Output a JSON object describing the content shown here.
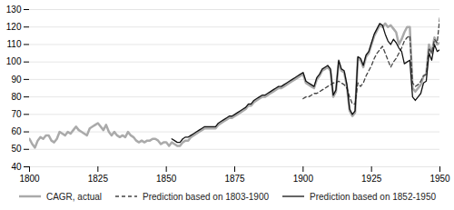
{
  "chart_data": {
    "type": "line",
    "x": [
      1800,
      1801,
      1802,
      1803,
      1804,
      1805,
      1806,
      1807,
      1808,
      1809,
      1810,
      1811,
      1812,
      1813,
      1814,
      1815,
      1816,
      1817,
      1818,
      1819,
      1820,
      1821,
      1822,
      1823,
      1824,
      1825,
      1826,
      1827,
      1828,
      1829,
      1830,
      1831,
      1832,
      1833,
      1834,
      1835,
      1836,
      1837,
      1838,
      1839,
      1840,
      1841,
      1842,
      1843,
      1844,
      1845,
      1846,
      1847,
      1848,
      1849,
      1850,
      1851,
      1852,
      1853,
      1854,
      1855,
      1856,
      1857,
      1858,
      1859,
      1860,
      1861,
      1862,
      1863,
      1864,
      1865,
      1866,
      1867,
      1868,
      1869,
      1870,
      1871,
      1872,
      1873,
      1874,
      1875,
      1876,
      1877,
      1878,
      1879,
      1880,
      1881,
      1882,
      1883,
      1884,
      1885,
      1886,
      1887,
      1888,
      1889,
      1890,
      1891,
      1892,
      1893,
      1894,
      1895,
      1896,
      1897,
      1898,
      1899,
      1900,
      1901,
      1902,
      1903,
      1904,
      1905,
      1906,
      1907,
      1908,
      1909,
      1910,
      1911,
      1912,
      1913,
      1914,
      1915,
      1916,
      1917,
      1918,
      1919,
      1920,
      1921,
      1922,
      1923,
      1924,
      1925,
      1926,
      1927,
      1928,
      1929,
      1930,
      1931,
      1932,
      1933,
      1934,
      1935,
      1936,
      1937,
      1938,
      1939,
      1940,
      1941,
      1942,
      1943,
      1944,
      1945,
      1946,
      1947,
      1948,
      1949,
      1950
    ],
    "series": [
      {
        "name": "CAGR, actual",
        "color": "#aaaaaa",
        "line_style": "solid",
        "values": [
          56,
          53,
          51,
          55,
          57,
          56,
          58,
          58,
          55,
          54,
          56,
          60,
          59,
          58,
          60,
          59,
          61,
          63,
          61,
          60,
          59,
          58,
          62,
          63,
          64,
          65,
          63,
          61,
          64,
          60,
          58,
          60,
          58,
          57,
          58,
          57,
          60,
          58,
          57,
          55,
          54,
          55,
          54,
          55,
          55,
          56,
          56,
          55,
          53,
          54,
          54,
          52,
          54,
          53,
          52,
          52,
          54,
          55,
          55,
          57,
          58,
          59,
          60,
          61,
          62,
          62,
          62,
          62,
          62,
          64,
          65,
          66,
          67,
          68,
          68,
          69,
          70,
          71,
          72,
          73,
          75,
          75,
          77,
          78,
          79,
          80,
          80,
          81,
          82,
          83,
          84,
          85,
          85,
          86,
          87,
          88,
          89,
          90,
          91,
          92,
          93,
          88,
          87,
          86,
          85,
          90,
          92,
          95,
          96,
          97,
          95,
          80,
          83,
          100,
          95,
          94,
          86,
          72,
          69,
          71,
          102,
          101,
          97,
          103,
          105,
          110,
          115,
          118,
          121,
          120,
          122,
          120,
          121,
          119,
          117,
          110,
          113,
          117,
          120,
          120,
          85,
          83,
          85,
          87,
          92,
          93,
          110,
          105,
          114,
          110,
          111
        ]
      },
      {
        "name": "Prediction based on 1803-1900",
        "color": "#444444",
        "line_style": "dashed",
        "values": [
          null,
          null,
          null,
          null,
          null,
          null,
          null,
          null,
          null,
          null,
          null,
          null,
          null,
          null,
          null,
          null,
          null,
          null,
          null,
          null,
          null,
          null,
          null,
          null,
          null,
          null,
          null,
          null,
          null,
          null,
          null,
          null,
          null,
          null,
          null,
          null,
          null,
          null,
          null,
          null,
          null,
          null,
          null,
          null,
          null,
          null,
          null,
          null,
          null,
          null,
          null,
          null,
          null,
          null,
          null,
          null,
          null,
          null,
          null,
          null,
          null,
          null,
          null,
          null,
          null,
          null,
          null,
          null,
          null,
          null,
          null,
          null,
          null,
          null,
          null,
          null,
          null,
          null,
          null,
          null,
          null,
          null,
          null,
          null,
          null,
          null,
          null,
          null,
          null,
          null,
          null,
          null,
          null,
          null,
          null,
          null,
          null,
          null,
          null,
          null,
          79,
          80,
          80,
          81,
          82,
          82,
          83,
          84,
          85,
          86,
          87,
          88,
          88,
          89,
          88,
          87,
          85,
          80,
          76,
          76,
          88,
          86,
          88,
          92,
          95,
          98,
          102,
          105,
          107,
          109,
          105,
          101,
          97,
          100,
          102,
          105,
          108,
          112,
          114,
          115,
          88,
          86,
          87,
          89,
          92,
          93,
          108,
          105,
          113,
          111,
          126
        ]
      },
      {
        "name": "Prediction based on 1852-1950",
        "color": "#111111",
        "line_style": "solid",
        "values": [
          null,
          null,
          null,
          null,
          null,
          null,
          null,
          null,
          null,
          null,
          null,
          null,
          null,
          null,
          null,
          null,
          null,
          null,
          null,
          null,
          null,
          null,
          null,
          null,
          null,
          null,
          null,
          null,
          null,
          null,
          null,
          null,
          null,
          null,
          null,
          null,
          null,
          null,
          null,
          null,
          null,
          null,
          null,
          null,
          null,
          null,
          null,
          null,
          null,
          null,
          null,
          null,
          56,
          55,
          54,
          54,
          56,
          57,
          57,
          58,
          59,
          60,
          61,
          62,
          63,
          63,
          63,
          63,
          63,
          65,
          66,
          67,
          68,
          69,
          69,
          70,
          71,
          72,
          73,
          74,
          76,
          76,
          78,
          79,
          80,
          81,
          81,
          82,
          83,
          84,
          85,
          86,
          86,
          87,
          88,
          89,
          90,
          91,
          92,
          93,
          94,
          89,
          88,
          87,
          86,
          91,
          93,
          96,
          97,
          98,
          96,
          81,
          84,
          101,
          96,
          95,
          87,
          73,
          70,
          72,
          103,
          102,
          98,
          104,
          106,
          111,
          116,
          119,
          122,
          121,
          116,
          112,
          110,
          113,
          111,
          108,
          106,
          99,
          100,
          101,
          80,
          78,
          80,
          82,
          88,
          89,
          105,
          101,
          110,
          106,
          107
        ]
      }
    ],
    "xlim": [
      1800,
      1950
    ],
    "xticks": [
      1800,
      1825,
      1850,
      1875,
      1900,
      1925,
      1950
    ],
    "ylim": [
      40,
      130
    ],
    "yticks": [
      40,
      50,
      60,
      70,
      80,
      90,
      100,
      110,
      120,
      130
    ],
    "grid": true,
    "legend": "bottom"
  }
}
